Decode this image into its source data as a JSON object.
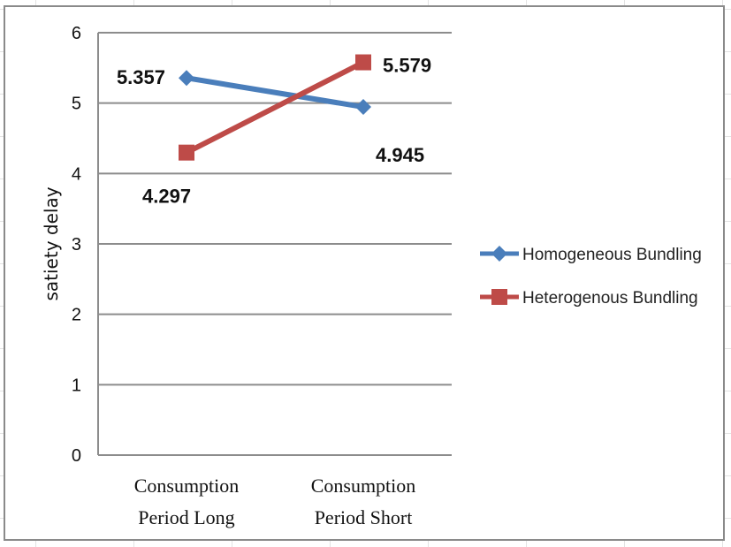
{
  "chart_data": {
    "type": "line",
    "title": "",
    "xlabel": "",
    "ylabel": "satiety delay",
    "ylim": [
      0,
      6
    ],
    "yticks": [
      0,
      1,
      2,
      3,
      4,
      5,
      6
    ],
    "categories": [
      [
        "Consumption",
        "Period Long"
      ],
      [
        "Consumption",
        "Period Short"
      ]
    ],
    "grid": "horizontal",
    "legend_position": "right",
    "series": [
      {
        "name": "Homogeneous Bundling",
        "values": [
          5.357,
          4.945
        ],
        "data_labels": [
          "5.357",
          "4.945"
        ],
        "color": "#4a7ebb",
        "marker": "diamond"
      },
      {
        "name": "Heterogenous Bundling",
        "values": [
          4.297,
          5.579
        ],
        "data_labels": [
          "4.297",
          "5.579"
        ],
        "color": "#be4b48",
        "marker": "square"
      }
    ]
  }
}
